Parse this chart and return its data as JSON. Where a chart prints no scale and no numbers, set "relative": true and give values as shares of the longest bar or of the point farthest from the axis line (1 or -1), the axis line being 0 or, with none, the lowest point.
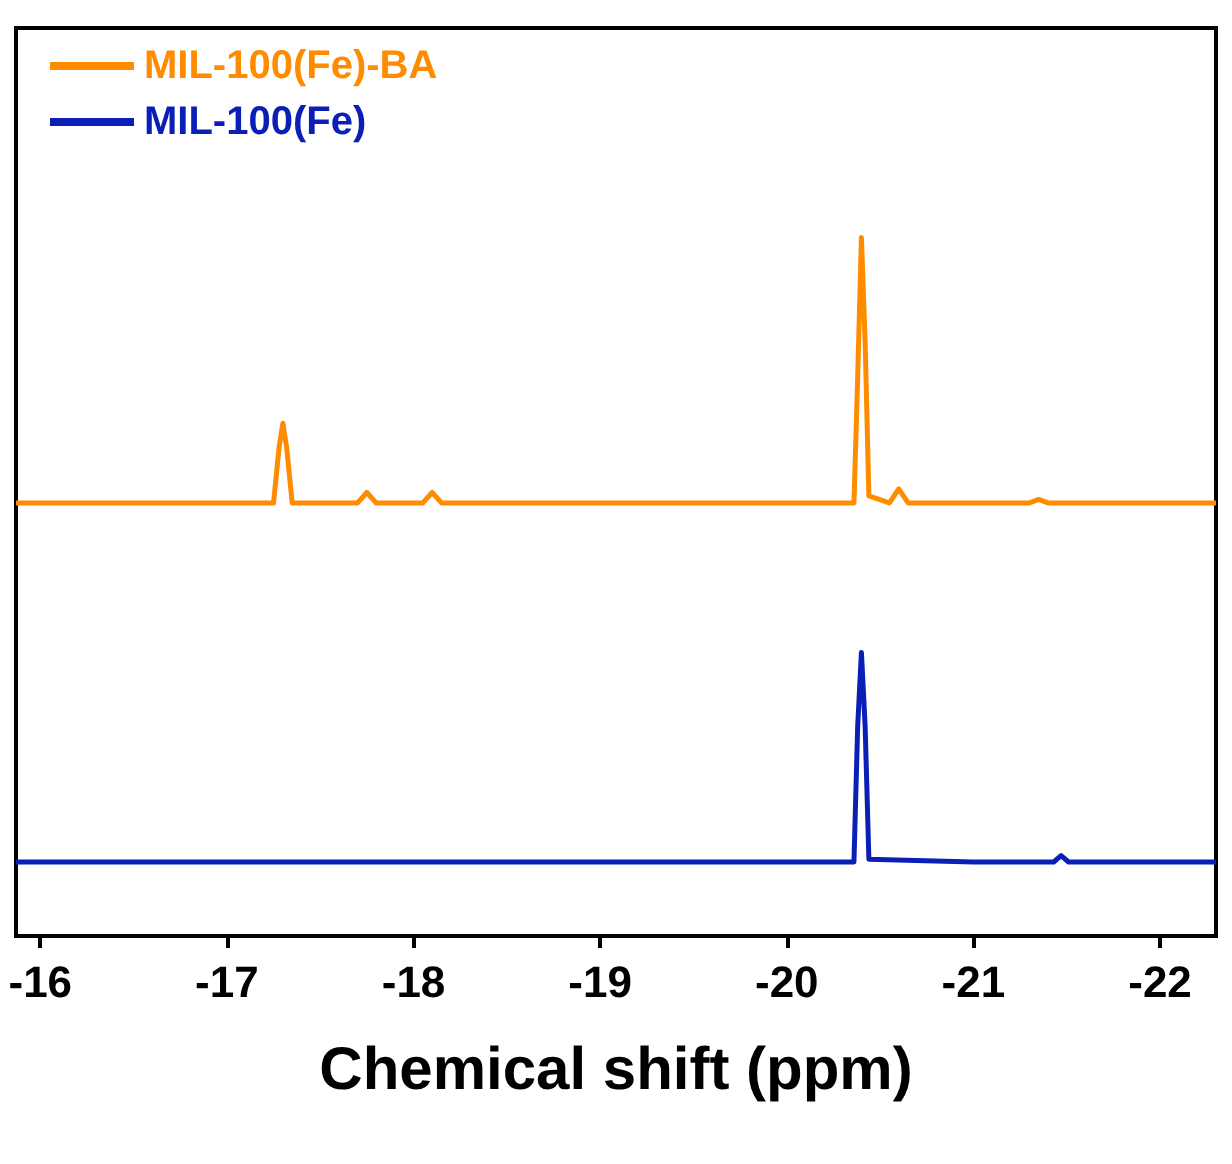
{
  "chart_data": {
    "type": "line",
    "relative": true,
    "xlabel": "Chemical shift (ppm)",
    "xlim": [
      -15.87,
      -22.3
    ],
    "xticks": [
      -16,
      -17,
      -18,
      -19,
      -20,
      -21,
      -22
    ],
    "tick_labels": "x",
    "grid": false,
    "legend": "top left",
    "marker": "none",
    "line_style": "solid",
    "series": [
      {
        "name": "MIL-100(Fe)-BA",
        "color": "#ff8c00",
        "x": [
          -15.87,
          -16.5,
          -17.0,
          -17.25,
          -17.28,
          -17.3,
          -17.32,
          -17.35,
          -17.7,
          -17.75,
          -17.8,
          -18.05,
          -18.1,
          -18.15,
          -19.0,
          -20.0,
          -20.36,
          -20.38,
          -20.4,
          -20.42,
          -20.44,
          -20.55,
          -20.6,
          -20.65,
          -21.3,
          -21.35,
          -21.4,
          -22.3
        ],
        "values": [
          0.62,
          0.62,
          0.62,
          0.62,
          0.7,
          0.734,
          0.7,
          0.62,
          0.62,
          0.635,
          0.62,
          0.62,
          0.635,
          0.62,
          0.62,
          0.62,
          0.62,
          0.8,
          1.0,
          0.85,
          0.63,
          0.62,
          0.64,
          0.62,
          0.62,
          0.625,
          0.62,
          0.62
        ]
      },
      {
        "name": "MIL-100(Fe)",
        "color": "#0a1fb5",
        "x": [
          -15.87,
          -17.0,
          -18.0,
          -19.0,
          -20.0,
          -20.36,
          -20.38,
          -20.4,
          -20.42,
          -20.44,
          -21.0,
          -21.43,
          -21.47,
          -21.51,
          -22.3
        ],
        "values": [
          0.106,
          0.106,
          0.106,
          0.106,
          0.106,
          0.106,
          0.3,
          0.406,
          0.3,
          0.11,
          0.106,
          0.106,
          0.115,
          0.106,
          0.106
        ]
      }
    ]
  }
}
